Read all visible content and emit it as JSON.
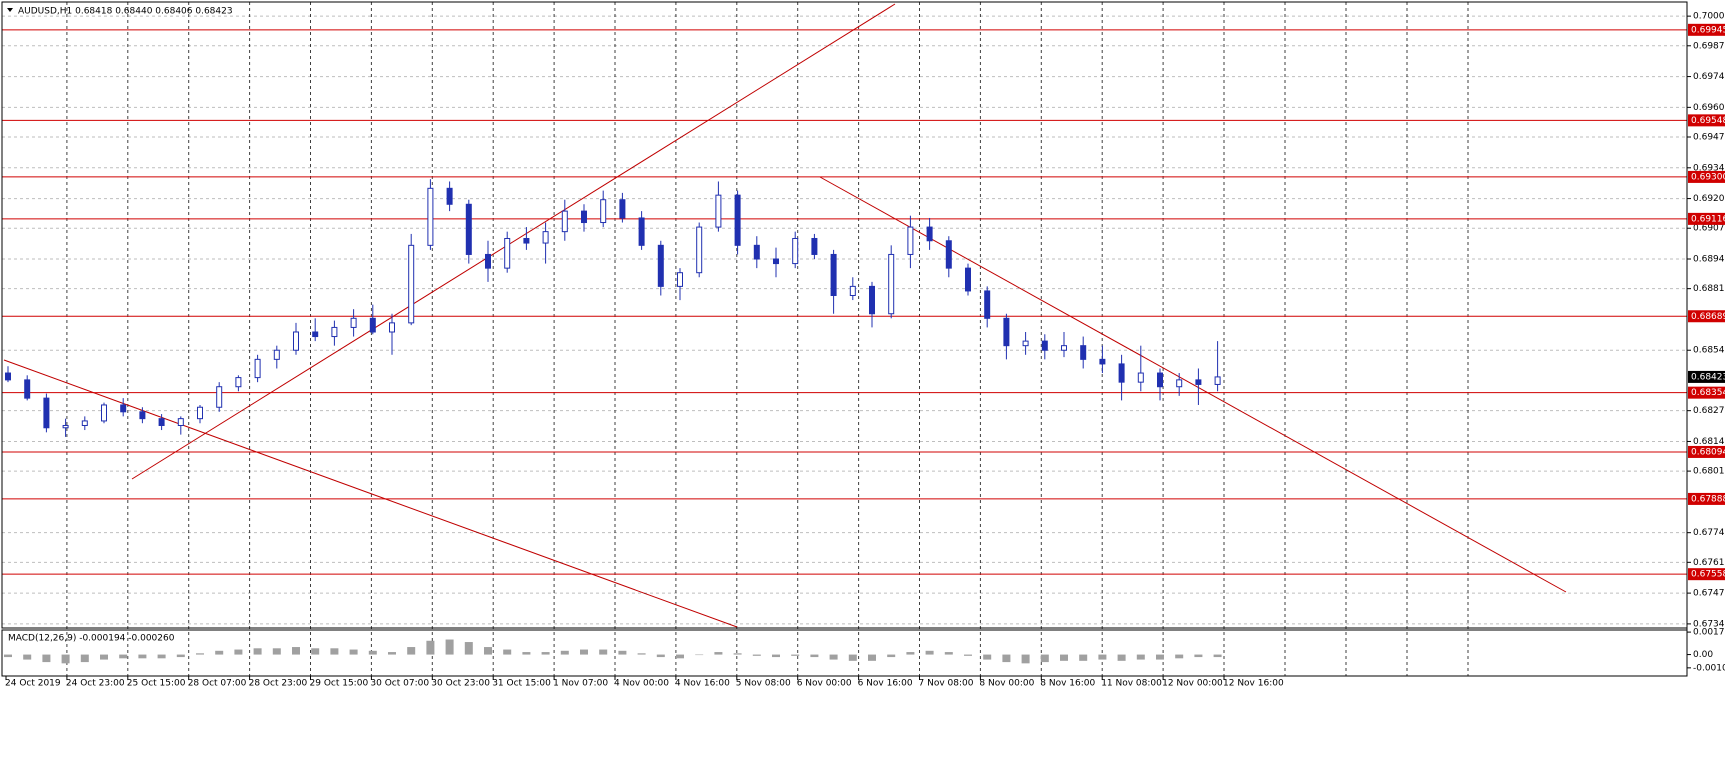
{
  "chart_data": {
    "type": "candlestick",
    "title": "AUDUSD,H1  0.68418 0.68440 0.68406 0.68423",
    "color": "#2030b0",
    "ylim": [
      0.67322,
      0.70067
    ],
    "yticks": [
      0.70005,
      0.69875,
      {
        "value": 0.6974,
        "label": "0.69740"
      },
      0.69605,
      0.69475,
      {
        "value": 0.6934,
        "label": "0.69340"
      },
      0.69205,
      0.69075,
      {
        "value": 0.6894,
        "label": "0.68940"
      },
      {
        "value": 0.6881,
        "label": "0.68810"
      },
      {
        "value": 0.6854,
        "label": "0.68540"
      },
      0.68275,
      {
        "value": 0.6814,
        "label": "0.68140"
      },
      {
        "value": 0.6801,
        "label": "0.68010"
      },
      {
        "value": 0.6774,
        "label": "0.67740"
      },
      {
        "value": 0.6761,
        "label": "0.67610"
      },
      0.67475,
      {
        "value": 0.6734,
        "label": "0.67340"
      }
    ],
    "grid": true,
    "levels": [
      0.69945,
      0.69548,
      {
        "value": 0.693,
        "label": "0.69300"
      },
      0.69116,
      0.68689,
      0.68354,
      0.68094,
      0.67888,
      0.67558
    ],
    "level_color": "#d00000",
    "current_price": 0.68423,
    "x_labels": [
      "24 Oct 2019",
      "24 Oct 23:00",
      "25 Oct 15:00",
      "28 Oct 07:00",
      "28 Oct 23:00",
      "29 Oct 15:00",
      "30 Oct 07:00",
      "30 Oct 23:00",
      "31 Oct 15:00",
      "1 Nov 07:00",
      "4 Nov 00:00",
      "4 Nov 16:00",
      "5 Nov 08:00",
      "6 Nov 00:00",
      "6 Nov 16:00",
      "7 Nov 08:00",
      "8 Nov 00:00",
      "8 Nov 16:00",
      "11 Nov 08:00",
      "12 Nov 00:00",
      "12 Nov 16:00"
    ],
    "candles": [
      [
        0.6844,
        0.6847,
        0.684,
        0.6841
      ],
      [
        0.6841,
        0.6843,
        0.6832,
        0.6833
      ],
      [
        0.6833,
        0.6835,
        0.6818,
        0.682
      ],
      [
        0.682,
        0.6824,
        0.6816,
        0.6821
      ],
      [
        0.6821,
        0.6825,
        0.6819,
        0.6823
      ],
      [
        0.6823,
        0.6831,
        0.6822,
        0.683
      ],
      [
        0.683,
        0.6833,
        0.6825,
        0.6827
      ],
      [
        0.6827,
        0.6829,
        0.6822,
        0.6824
      ],
      [
        0.6824,
        0.6826,
        0.6819,
        0.6821
      ],
      [
        0.6821,
        0.6825,
        0.6817,
        0.6824
      ],
      [
        0.6824,
        0.683,
        0.6822,
        0.6829
      ],
      [
        0.6829,
        0.684,
        0.6827,
        0.6838
      ],
      [
        0.6838,
        0.6843,
        0.6836,
        0.6842
      ],
      [
        0.6842,
        0.6852,
        0.684,
        0.685
      ],
      [
        0.685,
        0.6856,
        0.6846,
        0.6854
      ],
      [
        0.6854,
        0.6866,
        0.6852,
        0.6862
      ],
      [
        0.6862,
        0.6868,
        0.6858,
        0.686
      ],
      [
        0.686,
        0.6867,
        0.6856,
        0.6864
      ],
      [
        0.6864,
        0.6872,
        0.686,
        0.6868
      ],
      [
        0.6868,
        0.6874,
        0.6861,
        0.6862
      ],
      [
        0.6862,
        0.687,
        0.6852,
        0.6866
      ],
      [
        0.6866,
        0.6905,
        0.6865,
        0.69
      ],
      [
        0.69,
        0.6929,
        0.6898,
        0.6925
      ],
      [
        0.6925,
        0.6928,
        0.6915,
        0.6918
      ],
      [
        0.6918,
        0.692,
        0.6892,
        0.6896
      ],
      [
        0.6896,
        0.6902,
        0.6884,
        0.689
      ],
      [
        0.689,
        0.6906,
        0.6888,
        0.6903
      ],
      [
        0.6903,
        0.6908,
        0.6898,
        0.6901
      ],
      [
        0.6901,
        0.691,
        0.6892,
        0.6906
      ],
      [
        0.6906,
        0.692,
        0.6902,
        0.6915
      ],
      [
        0.6915,
        0.6918,
        0.6906,
        0.691
      ],
      [
        0.691,
        0.6924,
        0.6908,
        0.692
      ],
      [
        0.692,
        0.6923,
        0.691,
        0.6912
      ],
      [
        0.6912,
        0.6915,
        0.6898,
        0.69
      ],
      [
        0.69,
        0.6902,
        0.6878,
        0.6882
      ],
      [
        0.6882,
        0.689,
        0.6876,
        0.6888
      ],
      [
        0.6888,
        0.691,
        0.6886,
        0.6908
      ],
      [
        0.6908,
        0.6928,
        0.6906,
        0.6922
      ],
      [
        0.6922,
        0.6924,
        0.6896,
        0.69
      ],
      [
        0.69,
        0.6904,
        0.689,
        0.6894
      ],
      [
        0.6894,
        0.6899,
        0.6886,
        0.6892
      ],
      [
        0.6892,
        0.6906,
        0.689,
        0.6903
      ],
      [
        0.6903,
        0.6905,
        0.6894,
        0.6896
      ],
      [
        0.6896,
        0.6898,
        0.687,
        0.6878
      ],
      [
        0.6878,
        0.6886,
        0.6876,
        0.6882
      ],
      [
        0.6882,
        0.6884,
        0.6864,
        0.687
      ],
      [
        0.687,
        0.69,
        0.6868,
        0.6896
      ],
      [
        0.6896,
        0.6913,
        0.689,
        0.6908
      ],
      [
        0.6908,
        0.6912,
        0.6898,
        0.6902
      ],
      [
        0.6902,
        0.6904,
        0.6886,
        0.689
      ],
      [
        0.689,
        0.6892,
        0.6878,
        0.688
      ],
      [
        0.688,
        0.6882,
        0.6864,
        0.6868
      ],
      [
        0.6868,
        0.687,
        0.685,
        0.6856
      ],
      [
        0.6856,
        0.6862,
        0.6852,
        0.6858
      ],
      [
        0.6858,
        0.6861,
        0.685,
        0.6854
      ],
      [
        0.6854,
        0.6862,
        0.6851,
        0.6856
      ],
      [
        0.6856,
        0.686,
        0.6846,
        0.685
      ],
      [
        0.685,
        0.6856,
        0.6844,
        0.6848
      ],
      [
        0.6848,
        0.6852,
        0.6832,
        0.684
      ],
      [
        0.684,
        0.6856,
        0.6836,
        0.6844
      ],
      [
        0.6844,
        0.6846,
        0.6832,
        0.6838
      ],
      [
        0.6838,
        0.6844,
        0.6834,
        0.6841
      ],
      [
        0.6841,
        0.6846,
        0.683,
        0.6839
      ],
      [
        0.6839,
        0.6858,
        0.6836,
        0.68423
      ]
    ],
    "macd": {
      "title": "MACD(12,26,9) -0.000194 -0.000260",
      "color": "#a0a0a0",
      "ylim": [
        -0.00171,
        0.00196
      ],
      "yticks": [
        0.001793,
        {
          "value": 0,
          "label": "0.00"
        },
        -0.00106
      ],
      "values": [
        -0.0002,
        -0.0004,
        -0.0006,
        -0.0007,
        -0.0006,
        -0.0004,
        -0.0003,
        -0.0003,
        -0.0003,
        -0.0002,
        0.0001,
        0.0003,
        0.0004,
        0.0005,
        0.0005,
        0.0006,
        0.0005,
        0.0005,
        0.0004,
        0.0003,
        0.0002,
        0.0006,
        0.0011,
        0.0012,
        0.001,
        0.0006,
        0.0004,
        0.0002,
        0.0002,
        0.0003,
        0.0004,
        0.0004,
        0.0003,
        0.0001,
        -0.0002,
        -0.0003,
        0,
        0.0002,
        0.0001,
        -0.0001,
        -0.0002,
        -0.0001,
        -0.0002,
        -0.0004,
        -0.0005,
        -0.0005,
        -0.0002,
        0.0002,
        0.0003,
        0.0002,
        -0.0001,
        -0.0004,
        -0.0006,
        -0.0007,
        -0.0006,
        -0.0005,
        -0.0005,
        -0.0004,
        -0.0005,
        -0.0004,
        -0.0004,
        -0.0003,
        -0.0002,
        -0.0002
      ]
    }
  }
}
